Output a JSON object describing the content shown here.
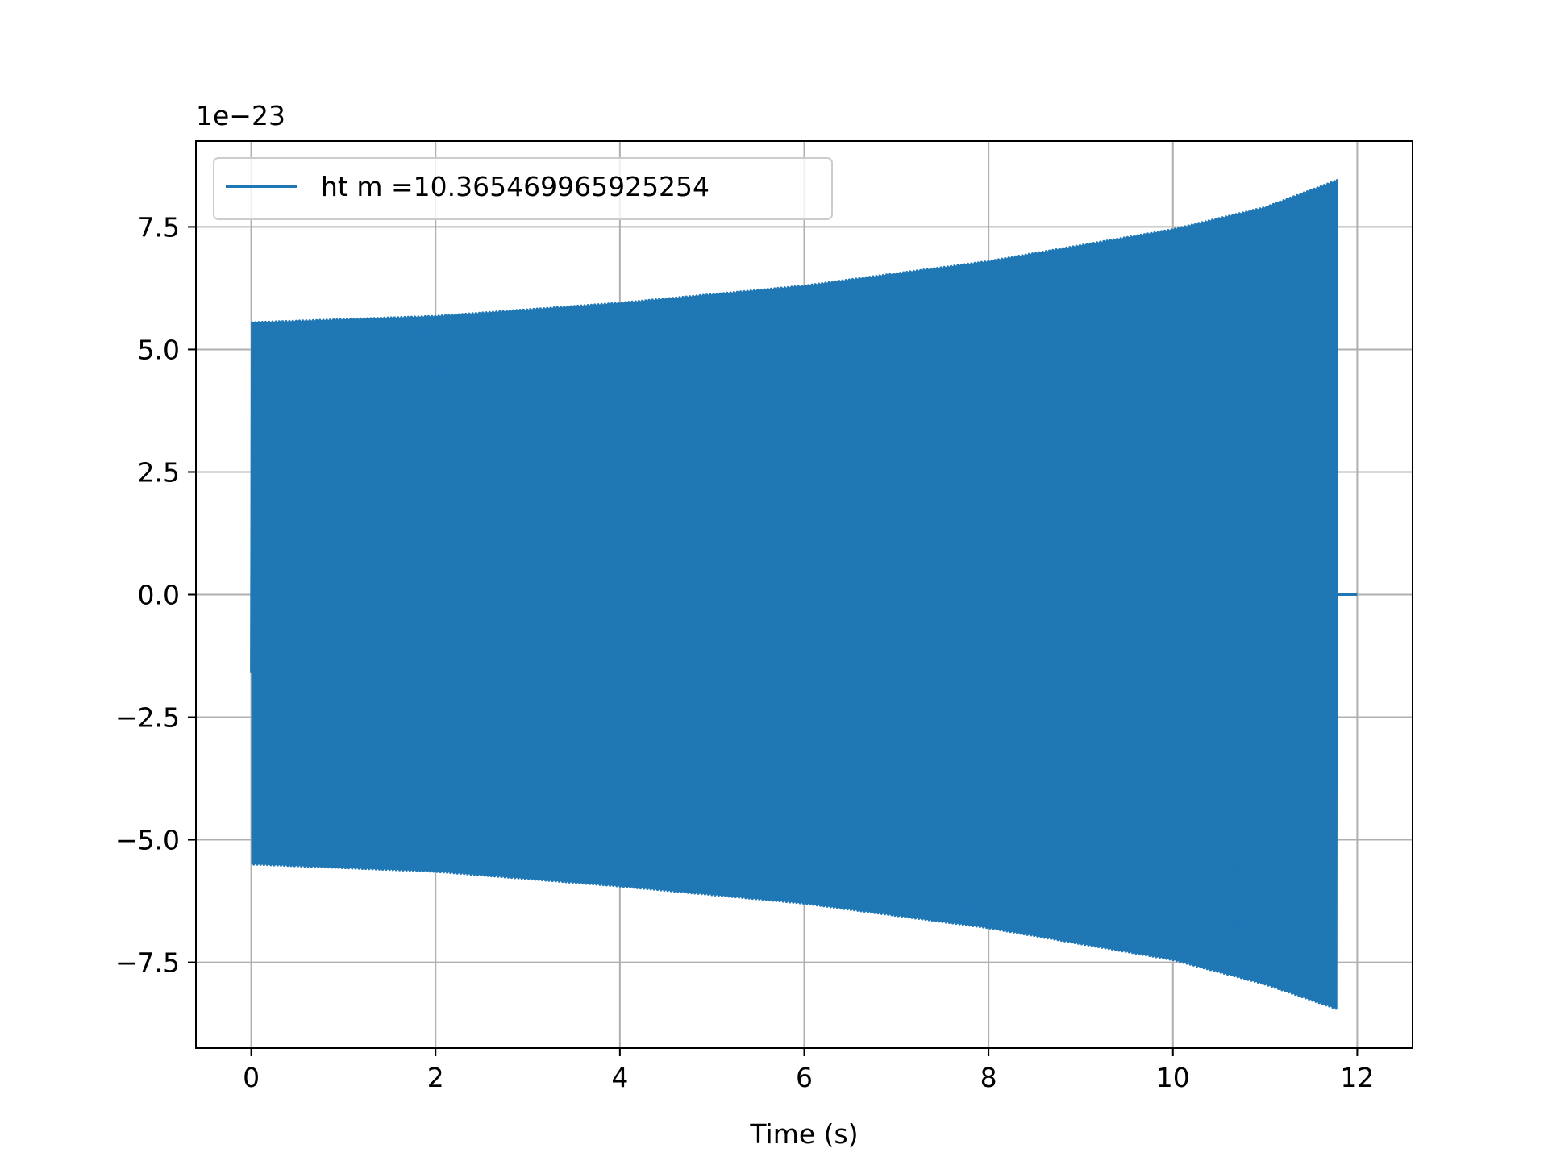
{
  "chart_data": {
    "type": "line",
    "title": "",
    "xlabel": "Time (s)",
    "ylabel": "",
    "y_scale_label": "1e−23",
    "xlim": [
      -0.6,
      12.6
    ],
    "ylim": [
      -9.25,
      9.25
    ],
    "x_ticks": [
      0,
      2,
      4,
      6,
      8,
      10,
      12
    ],
    "x_tick_labels": [
      "0",
      "2",
      "4",
      "6",
      "8",
      "10",
      "12"
    ],
    "y_ticks": [
      -7.5,
      -5.0,
      -2.5,
      0.0,
      2.5,
      5.0,
      7.5
    ],
    "y_tick_labels": [
      "−7.5",
      "−5.0",
      "−2.5",
      "0.0",
      "2.5",
      "5.0",
      "7.5"
    ],
    "grid": true,
    "legend_position": "upper-left",
    "colors": {
      "series": "#1f77b4",
      "grid": "#b0b0b0",
      "axes": "#000000"
    },
    "series": [
      {
        "name": "ht m =10.365469965925254",
        "signal_start": 0.0,
        "signal_end": 11.78,
        "x_end": 12.0,
        "start_value": -1.6,
        "final_value": 0.0,
        "upper_envelope": [
          [
            0.0,
            5.55
          ],
          [
            2.0,
            5.68
          ],
          [
            4.0,
            5.95
          ],
          [
            6.0,
            6.3
          ],
          [
            8.0,
            6.8
          ],
          [
            10.0,
            7.45
          ],
          [
            11.0,
            7.9
          ],
          [
            11.78,
            8.45
          ]
        ],
        "lower_envelope": [
          [
            0.0,
            -5.5
          ],
          [
            2.0,
            -5.65
          ],
          [
            4.0,
            -5.95
          ],
          [
            6.0,
            -6.3
          ],
          [
            8.0,
            -6.8
          ],
          [
            10.0,
            -7.45
          ],
          [
            11.0,
            -7.95
          ],
          [
            11.78,
            -8.45
          ]
        ]
      }
    ]
  }
}
